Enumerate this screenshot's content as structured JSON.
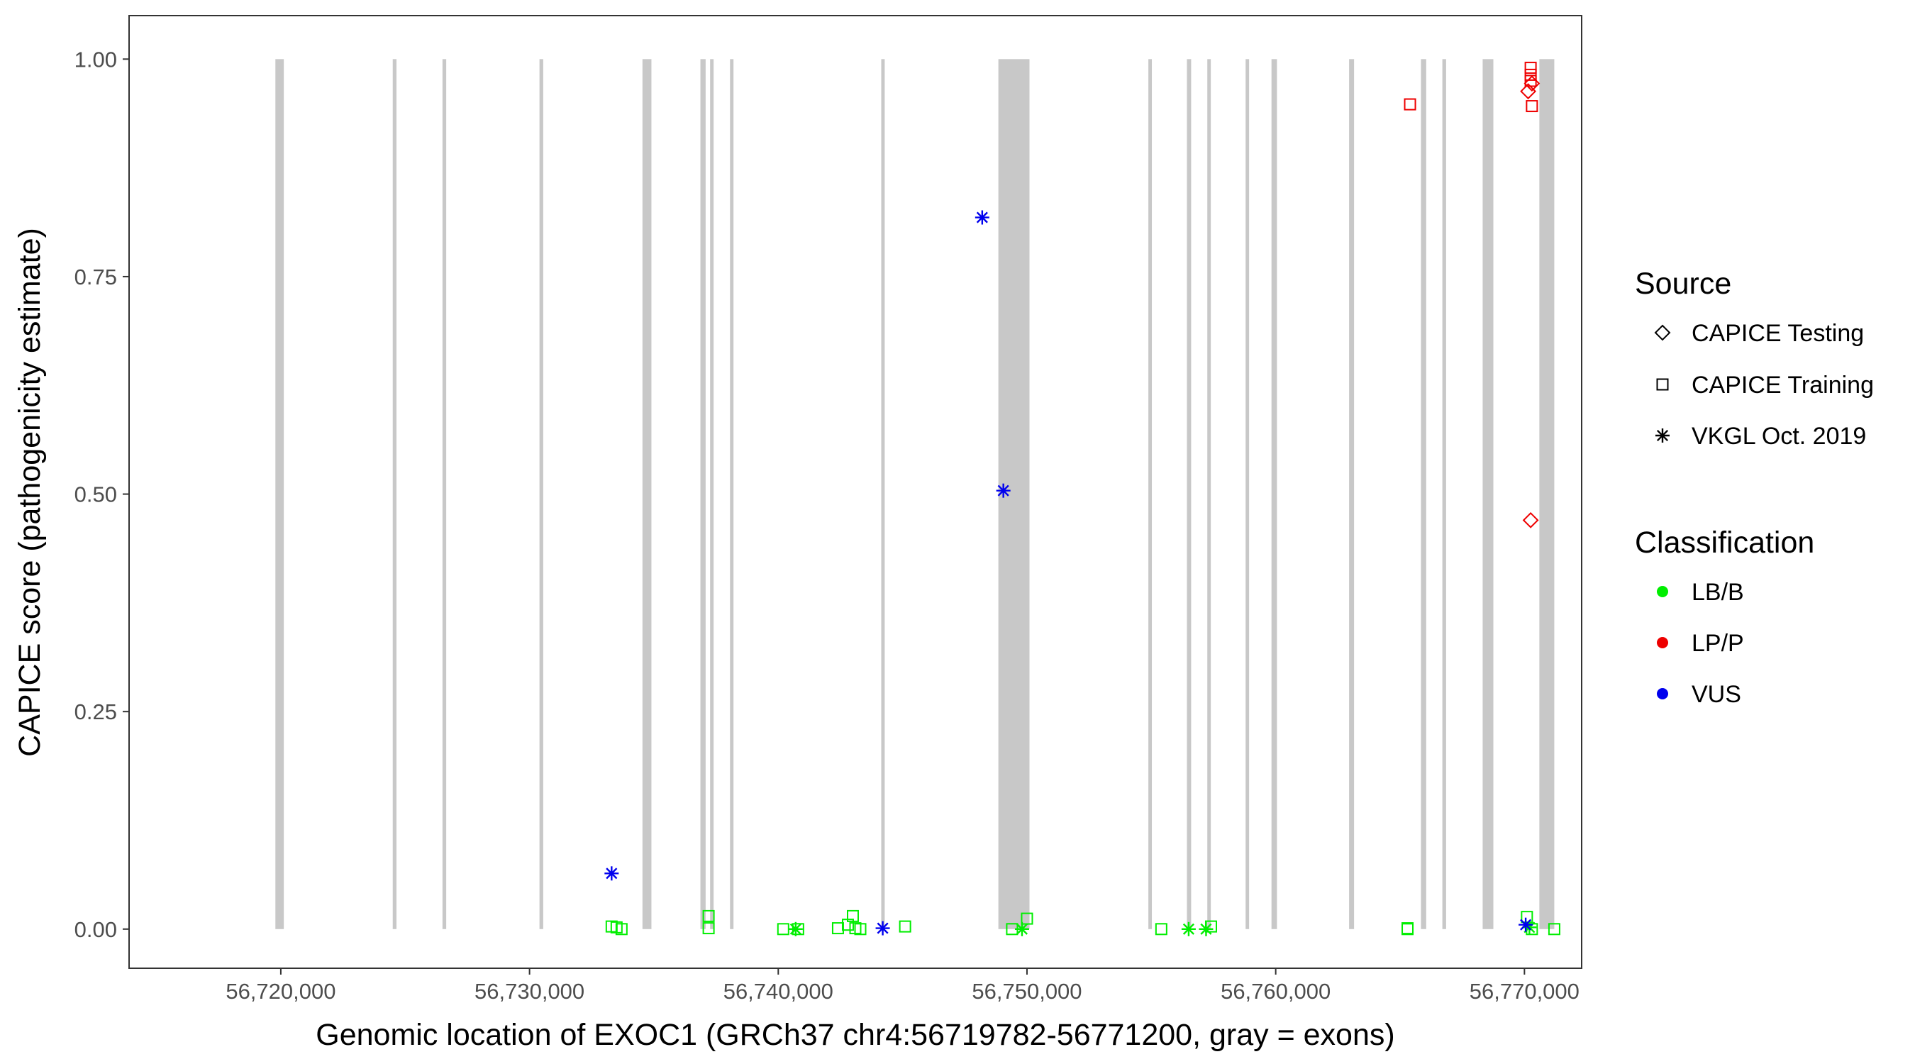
{
  "chart_data": {
    "type": "scatter",
    "xlabel": "Genomic location of EXOC1 (GRCh37 chr4:56719782-56771200, gray = exons)",
    "ylabel": "CAPICE score (pathogenicity estimate)",
    "xlim": [
      56713900,
      56772300
    ],
    "ylim": [
      -0.045,
      1.05
    ],
    "x_ticks": [
      56720000,
      56730000,
      56740000,
      56750000,
      56760000,
      56770000
    ],
    "x_tick_labels": [
      "56,720,000",
      "56,730,000",
      "56,740,000",
      "56,750,000",
      "56,760,000",
      "56,770,000"
    ],
    "y_ticks": [
      0,
      0.25,
      0.5,
      0.75,
      1.0
    ],
    "y_tick_labels": [
      "0.00",
      "0.25",
      "0.50",
      "0.75",
      "1.00"
    ],
    "grid": false,
    "legend_position": "right",
    "exon_color": "#c8c8c8",
    "exons": [
      [
        56719782,
        56720120
      ],
      [
        56724500,
        56724650
      ],
      [
        56726500,
        56726650
      ],
      [
        56730400,
        56730550
      ],
      [
        56734540,
        56734900
      ],
      [
        56736870,
        56737080
      ],
      [
        56737260,
        56737400
      ],
      [
        56738060,
        56738200
      ],
      [
        56744140,
        56744280
      ],
      [
        56748850,
        56750100
      ],
      [
        56754880,
        56755020
      ],
      [
        56756430,
        56756600
      ],
      [
        56757250,
        56757390
      ],
      [
        56758790,
        56758930
      ],
      [
        56759830,
        56760050
      ],
      [
        56762950,
        56763150
      ],
      [
        56765840,
        56766050
      ],
      [
        56766700,
        56766850
      ],
      [
        56768320,
        56768750
      ],
      [
        56770600,
        56771200
      ]
    ],
    "legend": {
      "source_title": "Source",
      "source_items": [
        {
          "label": "CAPICE Testing",
          "shape": "diamond"
        },
        {
          "label": "CAPICE Training",
          "shape": "square"
        },
        {
          "label": "VKGL Oct. 2019",
          "shape": "asterisk"
        }
      ],
      "class_title": "Classification",
      "class_items": [
        {
          "label": "LB/B",
          "color": "#00ee00"
        },
        {
          "label": "LP/P",
          "color": "#ee0000"
        },
        {
          "label": "VUS",
          "color": "#0000ee"
        }
      ]
    },
    "series": [
      {
        "name": "LB/B",
        "color": "#00ee00",
        "points": [
          {
            "x": 56733300,
            "y": 0.003,
            "shape": "square"
          },
          {
            "x": 56733500,
            "y": 0.002,
            "shape": "square"
          },
          {
            "x": 56733700,
            "y": 0.0,
            "shape": "square"
          },
          {
            "x": 56737200,
            "y": 0.015,
            "shape": "square"
          },
          {
            "x": 56737200,
            "y": 0.001,
            "shape": "square"
          },
          {
            "x": 56740200,
            "y": 0.0,
            "shape": "square"
          },
          {
            "x": 56740700,
            "y": 0.0,
            "shape": "asterisk"
          },
          {
            "x": 56740800,
            "y": 0.0,
            "shape": "square"
          },
          {
            "x": 56742400,
            "y": 0.001,
            "shape": "square"
          },
          {
            "x": 56742800,
            "y": 0.005,
            "shape": "square"
          },
          {
            "x": 56743000,
            "y": 0.015,
            "shape": "square"
          },
          {
            "x": 56743100,
            "y": 0.001,
            "shape": "square"
          },
          {
            "x": 56743300,
            "y": 0.0,
            "shape": "square"
          },
          {
            "x": 56745100,
            "y": 0.003,
            "shape": "square"
          },
          {
            "x": 56749400,
            "y": 0.0,
            "shape": "square"
          },
          {
            "x": 56749800,
            "y": 0.0,
            "shape": "asterisk"
          },
          {
            "x": 56750000,
            "y": 0.012,
            "shape": "square"
          },
          {
            "x": 56755400,
            "y": 0.0,
            "shape": "square"
          },
          {
            "x": 56756500,
            "y": 0.0,
            "shape": "asterisk"
          },
          {
            "x": 56757200,
            "y": 0.0,
            "shape": "asterisk"
          },
          {
            "x": 56757400,
            "y": 0.003,
            "shape": "square"
          },
          {
            "x": 56765300,
            "y": 0.001,
            "shape": "square"
          },
          {
            "x": 56765300,
            "y": 0.0,
            "shape": "square"
          },
          {
            "x": 56770100,
            "y": 0.014,
            "shape": "square"
          },
          {
            "x": 56770200,
            "y": 0.002,
            "shape": "asterisk"
          },
          {
            "x": 56770300,
            "y": 0.0,
            "shape": "square"
          },
          {
            "x": 56771200,
            "y": 0.0,
            "shape": "square"
          }
        ]
      },
      {
        "name": "LP/P",
        "color": "#ee0000",
        "points": [
          {
            "x": 56765400,
            "y": 0.948,
            "shape": "square"
          },
          {
            "x": 56770250,
            "y": 0.99,
            "shape": "square"
          },
          {
            "x": 56770250,
            "y": 0.982,
            "shape": "square"
          },
          {
            "x": 56770250,
            "y": 0.975,
            "shape": "square"
          },
          {
            "x": 56770300,
            "y": 0.972,
            "shape": "diamond"
          },
          {
            "x": 56770150,
            "y": 0.963,
            "shape": "diamond"
          },
          {
            "x": 56770300,
            "y": 0.946,
            "shape": "square"
          },
          {
            "x": 56770250,
            "y": 0.47,
            "shape": "diamond"
          }
        ]
      },
      {
        "name": "VUS",
        "color": "#0000ee",
        "points": [
          {
            "x": 56733300,
            "y": 0.064,
            "shape": "asterisk"
          },
          {
            "x": 56744200,
            "y": 0.001,
            "shape": "asterisk"
          },
          {
            "x": 56748200,
            "y": 0.818,
            "shape": "asterisk"
          },
          {
            "x": 56749050,
            "y": 0.504,
            "shape": "asterisk"
          },
          {
            "x": 56770050,
            "y": 0.005,
            "shape": "asterisk"
          }
        ]
      }
    ]
  }
}
